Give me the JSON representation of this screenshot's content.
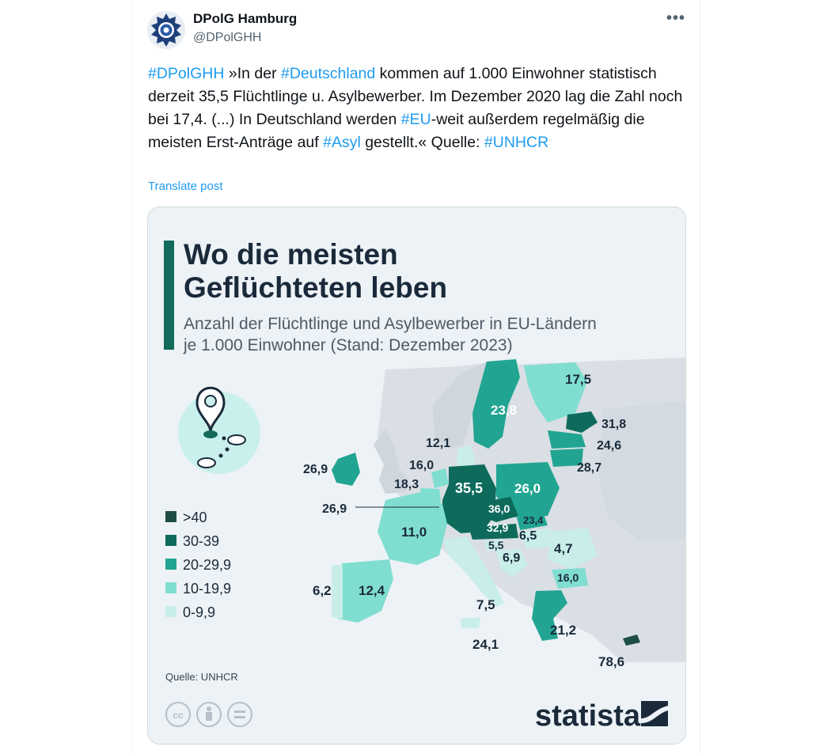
{
  "author": {
    "name": "DPolG Hamburg",
    "handle": "@DPolGHH"
  },
  "more_label": "•••",
  "post": {
    "segments": [
      {
        "text": "#DPolGHH",
        "tag": true
      },
      {
        "text": " »In der ",
        "tag": false
      },
      {
        "text": "#Deutschland",
        "tag": true
      },
      {
        "text": " kommen auf 1.000 Einwohner statistisch derzeit 35,5 Flüchtlinge u. Asylbewerber. Im Dezember 2020 lag die Zahl noch bei 17,4. (...) In Deutschland werden ",
        "tag": false
      },
      {
        "text": "#EU",
        "tag": true
      },
      {
        "text": "-weit außerdem regelmäßig die meisten Erst-Anträge auf ",
        "tag": false
      },
      {
        "text": "#Asyl",
        "tag": true
      },
      {
        "text": " gestellt.« Quelle: ",
        "tag": false
      },
      {
        "text": "#UNHCR",
        "tag": true
      }
    ],
    "translate_label": "Translate post"
  },
  "infographic": {
    "title_line1": "Wo die meisten",
    "title_line2": "Geflüchteten leben",
    "subtitle_line1": "Anzahl der Flüchtlinge und Asylbewerber in EU-Ländern",
    "subtitle_line2": "je 1.000 Einwohner (Stand: Dezember 2023)",
    "legend": [
      {
        "label": ">40",
        "color": "#1e4d44"
      },
      {
        "label": "30-39",
        "color": "#0e6b5c"
      },
      {
        "label": "20-29,9",
        "color": "#21a592"
      },
      {
        "label": "10-19,9",
        "color": "#7fded0"
      },
      {
        "label": "0-9,9",
        "color": "#c9eeea"
      }
    ],
    "source": "Quelle: UNHCR",
    "brand": "statista",
    "license_icons": [
      "cc",
      "by-person",
      "nd-equals"
    ],
    "countries": [
      {
        "name": "Schweden",
        "value": "23,8",
        "bucket": 2
      },
      {
        "name": "Finnland",
        "value": "17,5",
        "bucket": 3
      },
      {
        "name": "Estland",
        "value": "31,8",
        "bucket": 1
      },
      {
        "name": "Lettland",
        "value": "24,6",
        "bucket": 2
      },
      {
        "name": "Litauen",
        "value": "28,7",
        "bucket": 2
      },
      {
        "name": "Dänemark",
        "value": "12,1",
        "bucket": 3
      },
      {
        "name": "Irland",
        "value": "26,9",
        "bucket": 2
      },
      {
        "name": "Niederlande",
        "value": "16,0",
        "bucket": 3
      },
      {
        "name": "Belgien",
        "value": "18,3",
        "bucket": 3
      },
      {
        "name": "Luxemburg",
        "value": "26,9",
        "bucket": 2
      },
      {
        "name": "Deutschland",
        "value": "35,5",
        "bucket": 1
      },
      {
        "name": "Polen",
        "value": "26,0",
        "bucket": 2
      },
      {
        "name": "Tschechien",
        "value": "36,0",
        "bucket": 1
      },
      {
        "name": "Slowakei",
        "value": "23,4",
        "bucket": 2
      },
      {
        "name": "Österreich",
        "value": "32,9",
        "bucket": 1
      },
      {
        "name": "Frankreich",
        "value": "11,0",
        "bucket": 3
      },
      {
        "name": "Slowenien",
        "value": "5,5",
        "bucket": 4
      },
      {
        "name": "Ungarn",
        "value": "6,5",
        "bucket": 4
      },
      {
        "name": "Kroatien",
        "value": "6,9",
        "bucket": 4
      },
      {
        "name": "Rumänien",
        "value": "4,7",
        "bucket": 4
      },
      {
        "name": "Bulgarien",
        "value": "16,0",
        "bucket": 3
      },
      {
        "name": "Portugal",
        "value": "6,2",
        "bucket": 4
      },
      {
        "name": "Spanien",
        "value": "12,4",
        "bucket": 3
      },
      {
        "name": "Italien",
        "value": "7,5",
        "bucket": 4
      },
      {
        "name": "Malta",
        "value": "24,1",
        "bucket": 2
      },
      {
        "name": "Griechenland",
        "value": "21,2",
        "bucket": 2
      },
      {
        "name": "Zypern",
        "value": "78,6",
        "bucket": 0
      }
    ]
  }
}
